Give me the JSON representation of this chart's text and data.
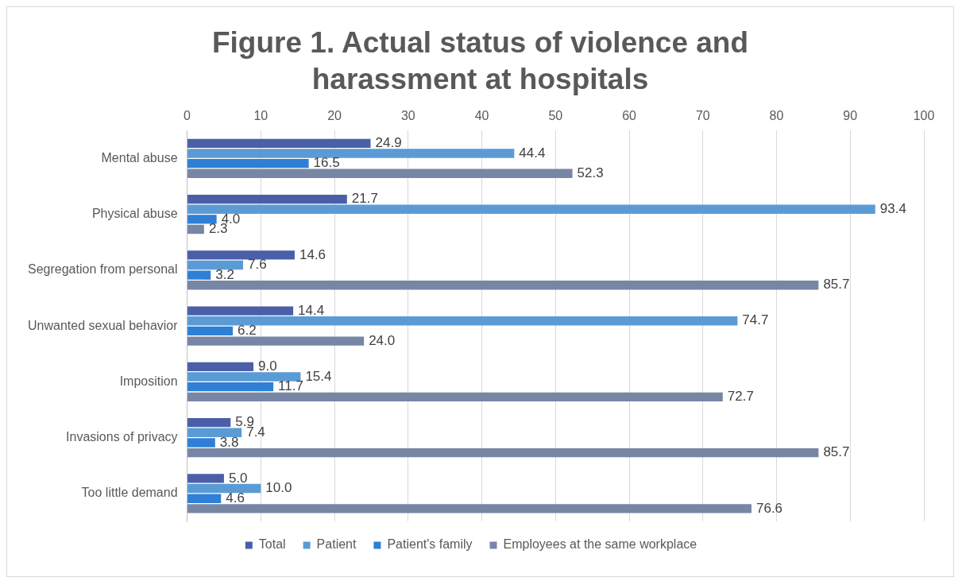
{
  "chart_data": {
    "type": "bar",
    "orientation": "horizontal",
    "title": "Figure 1. Actual status of violence and harassment at hospitals",
    "categories": [
      "Mental abuse",
      "Physical abuse",
      "Segregation from personal",
      "Unwanted sexual behavior",
      "Imposition",
      "Invasions of privacy",
      "Too little demand"
    ],
    "series": [
      {
        "name": "Total",
        "color": "#4a5fa8",
        "values": [
          24.9,
          21.7,
          14.6,
          14.4,
          9.0,
          5.9,
          5.0
        ],
        "value_labels": [
          "24.9",
          "21.7",
          "14.6",
          "14.4",
          "9.0",
          "5.9",
          "5.0"
        ]
      },
      {
        "name": "Patient",
        "color": "#5b9bd5",
        "values": [
          44.4,
          93.4,
          7.6,
          74.7,
          15.4,
          7.4,
          10.0
        ],
        "value_labels": [
          "44.4",
          "93.4",
          "7.6",
          "74.7",
          "15.4",
          "7.4",
          "10.0"
        ]
      },
      {
        "name": "Patient's family",
        "color": "#2f7fd6",
        "values": [
          16.5,
          4.0,
          3.2,
          6.2,
          11.7,
          3.8,
          4.6
        ],
        "value_labels": [
          "16.5",
          "4.0",
          "3.2",
          "6.2",
          "11.7",
          "3.8",
          "4.6"
        ]
      },
      {
        "name": "Employees at the same workplace",
        "color": "#7886a5",
        "values": [
          52.3,
          2.3,
          85.7,
          24.0,
          72.7,
          85.7,
          76.6
        ],
        "value_labels": [
          "52.3",
          "2.3",
          "85.7",
          "24.0",
          "72.7",
          "85.7",
          "76.6"
        ]
      }
    ],
    "xlim": [
      0,
      100
    ],
    "xticks": [
      0,
      10,
      20,
      30,
      40,
      50,
      60,
      70,
      80,
      90,
      100
    ],
    "grid": "x",
    "legend": "bottom"
  }
}
